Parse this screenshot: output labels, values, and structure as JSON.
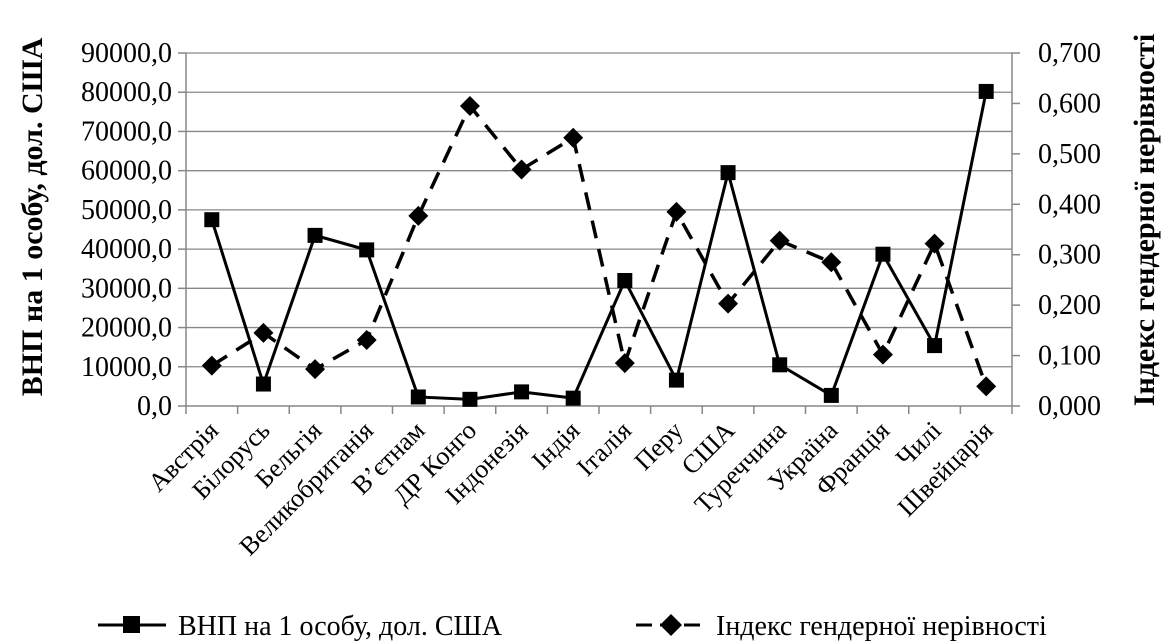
{
  "chart_data": {
    "type": "line",
    "categories": [
      "Австрія",
      "Білорусь",
      "Бельгія",
      "Великобританія",
      "В’єтнам",
      "ДР Конго",
      "Індонезія",
      "Індія",
      "Італія",
      "Перу",
      "США",
      "Туреччина",
      "Україна",
      "Франція",
      "Чилі",
      "Швейцарія"
    ],
    "series": [
      {
        "name": "ВНП на 1 особу, дол. США",
        "axis": "left",
        "style": "solid",
        "marker": "square",
        "values": [
          47500,
          5600,
          43500,
          39800,
          2300,
          1700,
          3600,
          2000,
          32000,
          6600,
          59500,
          10500,
          2700,
          38700,
          15400,
          80200
        ]
      },
      {
        "name": "Індекс гендерної нерівності",
        "axis": "right",
        "style": "dashed",
        "marker": "diamond",
        "values": [
          0.08,
          0.145,
          0.073,
          0.131,
          0.377,
          0.595,
          0.469,
          0.532,
          0.085,
          0.385,
          0.203,
          0.328,
          0.285,
          0.102,
          0.322,
          0.039
        ]
      }
    ],
    "ylabel": "ВНП на 1 особу, дол. США",
    "y2label": "Індекс гендерної нерівності",
    "ylim": [
      0,
      90000
    ],
    "y2lim": [
      0,
      0.7
    ],
    "y_ticks": [
      "0,0",
      "10000,0",
      "20000,0",
      "30000,0",
      "40000,0",
      "50000,0",
      "60000,0",
      "70000,0",
      "80000,0",
      "90000,0"
    ],
    "y2_ticks": [
      "0,000",
      "0,100",
      "0,200",
      "0,300",
      "0,400",
      "0,500",
      "0,600",
      "0,700"
    ],
    "grid": true,
    "legend_position": "bottom",
    "colors": {
      "line": "#000000",
      "grid": "#878787",
      "background": "#ffffff"
    }
  }
}
